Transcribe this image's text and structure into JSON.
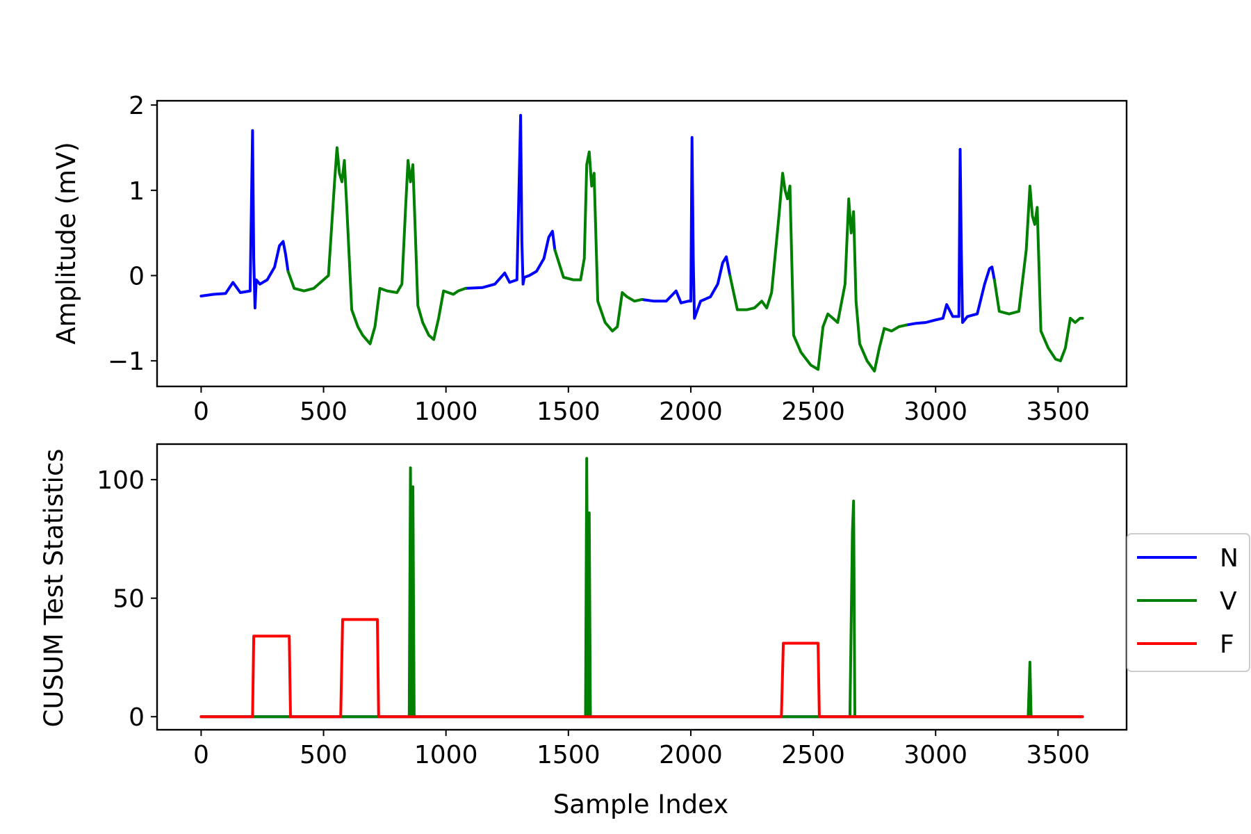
{
  "chart_data": [
    {
      "type": "line",
      "title": "",
      "xlabel": "",
      "ylabel": "Amplitude (mV)",
      "xlim": [
        -180,
        3780
      ],
      "ylim": [
        -1.3,
        2.05
      ],
      "xticks": [
        0,
        500,
        1000,
        1500,
        2000,
        2500,
        3000,
        3500
      ],
      "xtick_labels": [
        "0",
        "500",
        "1000",
        "1500",
        "2000",
        "2500",
        "3000",
        "3500"
      ],
      "yticks": [
        -1,
        0,
        1,
        2
      ],
      "ytick_labels": [
        "−1",
        "0",
        "1",
        "2"
      ],
      "grid": false,
      "series": [
        {
          "name": "N",
          "color": "#0000ff",
          "segments": [
            {
              "x": [
                0,
                50,
                100,
                130,
                160,
                200,
                210,
                215,
                220,
                225,
                240,
                270,
                300,
                320,
                335,
                345,
                355
              ],
              "y": [
                -0.24,
                -0.22,
                -0.21,
                -0.08,
                -0.2,
                -0.18,
                1.7,
                0.2,
                -0.38,
                -0.05,
                -0.1,
                -0.05,
                0.1,
                0.35,
                0.4,
                0.25,
                0.05
              ]
            },
            {
              "x": [
                1080,
                1150,
                1200,
                1240,
                1260,
                1290,
                1305,
                1310,
                1315,
                1320,
                1340,
                1370,
                1400,
                1420,
                1435,
                1445
              ],
              "y": [
                -0.15,
                -0.14,
                -0.1,
                0.03,
                -0.08,
                -0.05,
                1.88,
                0.4,
                -0.1,
                -0.02,
                0.0,
                0.05,
                0.2,
                0.45,
                0.52,
                0.3
              ]
            },
            {
              "x": [
                1800,
                1850,
                1900,
                1940,
                1960,
                1990,
                2000,
                2005,
                2010,
                2015,
                2040,
                2080,
                2110,
                2130,
                2145,
                2160
              ],
              "y": [
                -0.28,
                -0.3,
                -0.3,
                -0.18,
                -0.32,
                -0.3,
                -0.3,
                1.62,
                0.2,
                -0.5,
                -0.3,
                -0.25,
                -0.1,
                0.15,
                0.22,
                0.0
              ]
            },
            {
              "x": [
                2880,
                2920,
                2960,
                3000,
                3030,
                3045,
                3070,
                3095,
                3100,
                3105,
                3110,
                3130,
                3170,
                3200,
                3220,
                3230,
                3240
              ],
              "y": [
                -0.58,
                -0.56,
                -0.55,
                -0.52,
                -0.5,
                -0.34,
                -0.48,
                -0.48,
                1.48,
                0.3,
                -0.55,
                -0.48,
                -0.45,
                -0.1,
                0.08,
                0.1,
                -0.05
              ]
            }
          ]
        },
        {
          "name": "V",
          "color": "#008000",
          "segments": [
            {
              "x": [
                355,
                380,
                420,
                460,
                500,
                520,
                545,
                555,
                565,
                575,
                585,
                595,
                615,
                640,
                660,
                690,
                710,
                730,
                760,
                800,
                820,
                835,
                845,
                855,
                865,
                875,
                885,
                905,
                930,
                950,
                970,
                990,
                1010,
                1030,
                1050,
                1080
              ],
              "y": [
                0.05,
                -0.15,
                -0.18,
                -0.15,
                -0.05,
                0.0,
                1.1,
                1.5,
                1.2,
                1.1,
                1.35,
                0.8,
                -0.4,
                -0.6,
                -0.7,
                -0.8,
                -0.6,
                -0.15,
                -0.18,
                -0.2,
                -0.1,
                0.8,
                1.35,
                1.1,
                1.3,
                0.5,
                -0.35,
                -0.55,
                -0.7,
                -0.75,
                -0.5,
                -0.18,
                -0.2,
                -0.22,
                -0.18,
                -0.15
              ]
            },
            {
              "x": [
                1445,
                1480,
                1520,
                1550,
                1565,
                1575,
                1585,
                1595,
                1605,
                1620,
                1650,
                1680,
                1700,
                1720,
                1740,
                1770,
                1800
              ],
              "y": [
                0.3,
                -0.02,
                -0.05,
                -0.05,
                0.2,
                1.3,
                1.45,
                1.05,
                1.2,
                -0.3,
                -0.55,
                -0.65,
                -0.6,
                -0.2,
                -0.25,
                -0.3,
                -0.28
              ]
            },
            {
              "x": [
                2160,
                2190,
                2230,
                2260,
                2290,
                2310,
                2330,
                2360,
                2375,
                2385,
                2395,
                2405,
                2420,
                2450,
                2490,
                2520,
                2540,
                2560,
                2580,
                2600,
                2630,
                2645,
                2655,
                2665,
                2675,
                2690,
                2720,
                2750,
                2770,
                2790,
                2820,
                2850,
                2880
              ],
              "y": [
                0.0,
                -0.4,
                -0.4,
                -0.38,
                -0.3,
                -0.38,
                -0.2,
                0.7,
                1.2,
                1.0,
                0.9,
                1.05,
                -0.7,
                -0.9,
                -1.05,
                -1.1,
                -0.6,
                -0.45,
                -0.5,
                -0.55,
                -0.1,
                0.9,
                0.5,
                0.75,
                -0.3,
                -0.8,
                -1.0,
                -1.12,
                -0.85,
                -0.62,
                -0.65,
                -0.6,
                -0.58
              ]
            },
            {
              "x": [
                3240,
                3260,
                3300,
                3340,
                3370,
                3385,
                3395,
                3405,
                3415,
                3430,
                3460,
                3490,
                3510,
                3530,
                3550,
                3570,
                3590,
                3600
              ],
              "y": [
                -0.05,
                -0.42,
                -0.45,
                -0.42,
                0.3,
                1.05,
                0.7,
                0.6,
                0.8,
                -0.65,
                -0.85,
                -0.98,
                -1.0,
                -0.85,
                -0.5,
                -0.55,
                -0.5,
                -0.5
              ]
            }
          ]
        }
      ]
    },
    {
      "type": "line",
      "title": "",
      "xlabel": "Sample Index",
      "ylabel": "CUSUM Test Statistics",
      "xlim": [
        -180,
        3780
      ],
      "ylim": [
        -5.5,
        115
      ],
      "xticks": [
        0,
        500,
        1000,
        1500,
        2000,
        2500,
        3000,
        3500
      ],
      "xtick_labels": [
        "0",
        "500",
        "1000",
        "1500",
        "2000",
        "2500",
        "3000",
        "3500"
      ],
      "yticks": [
        0,
        50,
        100
      ],
      "ytick_labels": [
        "0",
        "50",
        "100"
      ],
      "grid": false,
      "legend": {
        "placement": "outside-right",
        "entries": [
          "N",
          "V",
          "F"
        ]
      },
      "series": [
        {
          "name": "N",
          "color": "#0000ff",
          "segments": [
            {
              "x": [
                0,
                3600
              ],
              "y": [
                0,
                0
              ]
            }
          ]
        },
        {
          "name": "V",
          "color": "#008000",
          "segments": [
            {
              "x": [
                0,
                845,
                850,
                855,
                860,
                865,
                870,
                3600
              ],
              "y": [
                0,
                0,
                0,
                105,
                0,
                97,
                0,
                0
              ]
            },
            {
              "x": [
                1560,
                1570,
                1575,
                1580,
                1585,
                1590
              ],
              "y": [
                0,
                0,
                109,
                0,
                86,
                0
              ]
            },
            {
              "x": [
                2640,
                2650,
                2660,
                2665,
                2670,
                2680
              ],
              "y": [
                0,
                0,
                78,
                91,
                0,
                0
              ]
            },
            {
              "x": [
                3370,
                3378,
                3385,
                3390
              ],
              "y": [
                0,
                0,
                23,
                0
              ]
            }
          ]
        },
        {
          "name": "F",
          "color": "#ff0000",
          "segments": [
            {
              "x": [
                0,
                210,
                215,
                360,
                365,
                570,
                578,
                720,
                725,
                2370,
                2378,
                2520,
                2525,
                3600
              ],
              "y": [
                0,
                0,
                34,
                34,
                0,
                0,
                41,
                41,
                0,
                0,
                31,
                31,
                0,
                0
              ]
            }
          ]
        }
      ]
    }
  ]
}
